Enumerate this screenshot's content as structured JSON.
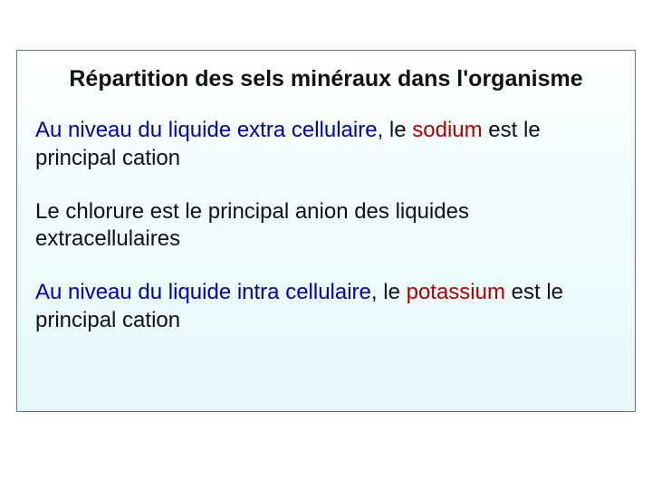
{
  "slide": {
    "title": "Répartition des sels minéraux dans l'organisme",
    "p1_a": "Au niveau du liquide extra cellulaire",
    "p1_b": ", le ",
    "p1_c": "sodium",
    "p1_d": " est le principal cation",
    "p2": "Le chlorure  est le principal anion des liquides extracellulaires",
    "p3_a": "Au niveau du liquide intra cellulaire",
    "p3_b": ", le ",
    "p3_c": "potassium",
    "p3_d": " est le principal cation"
  },
  "style": {
    "background_gradient_top": "#ffffff",
    "background_gradient_bottom": "#e5f8fa",
    "border_color": "#5b7b8c",
    "text_color": "#111111",
    "highlight_blue": "#0000b3",
    "highlight_red": "#b30000",
    "title_fontsize": 25,
    "body_fontsize": 24,
    "font_family": "Comic Sans MS"
  }
}
